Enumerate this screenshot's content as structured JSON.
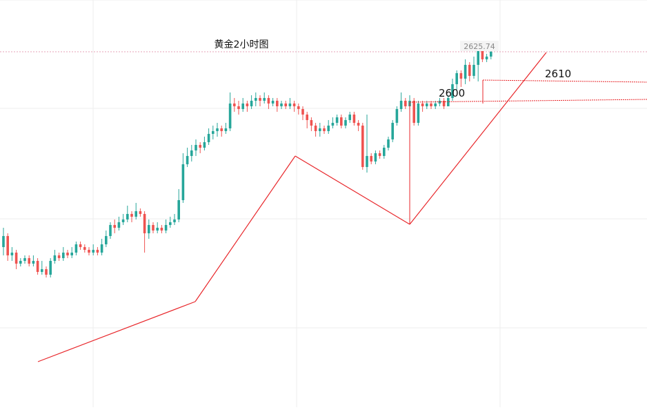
{
  "chart_data": {
    "type": "candlestick",
    "title": "黄金2小时图",
    "current_price_label": "2625.74",
    "colors": {
      "up": "#26a69a",
      "down": "#ef5350",
      "wick": "#333333",
      "annotation": "#e8262a",
      "grid": "#eeeeee",
      "price_line": "#e6a0b6",
      "price_tag_bg": "#f4f4f4",
      "price_tag_text": "#888888",
      "label_text": "#111111"
    },
    "annotations": {
      "levels": [
        {
          "label": "2600",
          "value": 2600
        },
        {
          "label": "2610",
          "value": 2610
        }
      ],
      "trend_lines": 4
    },
    "candles": [
      [
        2555.0,
        2559.0,
        2562.0,
        2552.0
      ],
      [
        2559.0,
        2552.0,
        2560.0,
        2550.0
      ],
      [
        2552.0,
        2553.0,
        2555.0,
        2550.0
      ],
      [
        2553.0,
        2549.0,
        2554.0,
        2547.0
      ],
      [
        2549.0,
        2550.0,
        2551.0,
        2548.0
      ],
      [
        2550.0,
        2551.0,
        2552.0,
        2549.0
      ],
      [
        2551.0,
        2549.0,
        2552.0,
        2548.0
      ],
      [
        2549.0,
        2550.0,
        2552.0,
        2548.0
      ],
      [
        2550.0,
        2546.0,
        2551.0,
        2545.0
      ],
      [
        2546.0,
        2547.0,
        2550.0,
        2545.0
      ],
      [
        2547.0,
        2545.0,
        2548.0,
        2544.0
      ],
      [
        2545.0,
        2550.0,
        2551.0,
        2544.0
      ],
      [
        2550.0,
        2552.0,
        2554.0,
        2549.0
      ],
      [
        2552.0,
        2551.0,
        2553.0,
        2550.0
      ],
      [
        2551.0,
        2553.0,
        2555.0,
        2550.0
      ],
      [
        2553.0,
        2552.0,
        2554.0,
        2551.0
      ],
      [
        2552.0,
        2553.0,
        2555.0,
        2551.0
      ],
      [
        2553.0,
        2556.0,
        2557.0,
        2552.0
      ],
      [
        2556.0,
        2555.0,
        2557.0,
        2554.0
      ],
      [
        2555.0,
        2554.0,
        2556.0,
        2553.0
      ],
      [
        2554.0,
        2553.0,
        2555.0,
        2552.0
      ],
      [
        2553.0,
        2554.0,
        2556.0,
        2552.0
      ],
      [
        2554.0,
        2553.0,
        2555.0,
        2552.0
      ],
      [
        2553.0,
        2556.0,
        2558.0,
        2552.0
      ],
      [
        2556.0,
        2559.0,
        2561.0,
        2555.0
      ],
      [
        2559.0,
        2563.0,
        2564.0,
        2558.0
      ],
      [
        2563.0,
        2562.0,
        2565.0,
        2560.0
      ],
      [
        2562.0,
        2564.0,
        2566.0,
        2561.0
      ],
      [
        2564.0,
        2565.0,
        2567.0,
        2563.0
      ],
      [
        2565.0,
        2567.0,
        2570.0,
        2564.0
      ],
      [
        2567.0,
        2566.0,
        2568.0,
        2564.0
      ],
      [
        2566.0,
        2568.0,
        2571.0,
        2565.0
      ],
      [
        2568.0,
        2567.0,
        2569.0,
        2566.0
      ],
      [
        2567.0,
        2560.0,
        2568.0,
        2553.0
      ],
      [
        2560.0,
        2563.0,
        2565.0,
        2558.0
      ],
      [
        2563.0,
        2561.0,
        2564.0,
        2560.0
      ],
      [
        2561.0,
        2562.0,
        2564.0,
        2560.0
      ],
      [
        2562.0,
        2561.0,
        2563.0,
        2560.0
      ],
      [
        2561.0,
        2563.0,
        2565.0,
        2560.0
      ],
      [
        2563.0,
        2564.0,
        2566.0,
        2562.0
      ],
      [
        2564.0,
        2565.0,
        2567.0,
        2563.0
      ],
      [
        2565.0,
        2572.0,
        2576.0,
        2564.0
      ],
      [
        2572.0,
        2585.0,
        2589.0,
        2571.0
      ],
      [
        2585.0,
        2588.0,
        2591.0,
        2584.0
      ],
      [
        2588.0,
        2590.0,
        2592.0,
        2586.0
      ],
      [
        2590.0,
        2592.0,
        2594.0,
        2588.0
      ],
      [
        2592.0,
        2591.0,
        2593.0,
        2589.0
      ],
      [
        2591.0,
        2593.0,
        2595.0,
        2590.0
      ],
      [
        2593.0,
        2596.0,
        2598.0,
        2592.0
      ],
      [
        2596.0,
        2597.0,
        2599.0,
        2594.0
      ],
      [
        2597.0,
        2598.0,
        2600.0,
        2595.0
      ],
      [
        2598.0,
        2597.0,
        2599.0,
        2595.0
      ],
      [
        2597.0,
        2598.0,
        2600.0,
        2596.0
      ],
      [
        2598.0,
        2607.0,
        2611.0,
        2597.0
      ],
      [
        2607.0,
        2606.0,
        2609.0,
        2604.0
      ],
      [
        2606.0,
        2605.0,
        2608.0,
        2603.0
      ],
      [
        2605.0,
        2607.0,
        2609.0,
        2604.0
      ],
      [
        2607.0,
        2606.0,
        2608.0,
        2604.0
      ],
      [
        2606.0,
        2608.0,
        2610.0,
        2605.0
      ],
      [
        2608.0,
        2609.0,
        2611.0,
        2606.0
      ],
      [
        2609.0,
        2608.0,
        2610.0,
        2606.0
      ],
      [
        2608.0,
        2609.0,
        2611.0,
        2607.0
      ],
      [
        2609.0,
        2607.0,
        2610.0,
        2605.0
      ],
      [
        2607.0,
        2608.0,
        2609.0,
        2606.0
      ],
      [
        2608.0,
        2606.0,
        2609.0,
        2604.0
      ],
      [
        2606.0,
        2607.0,
        2608.0,
        2605.0
      ],
      [
        2607.0,
        2606.0,
        2608.0,
        2605.0
      ],
      [
        2606.0,
        2607.0,
        2609.0,
        2605.0
      ],
      [
        2607.0,
        2606.0,
        2608.0,
        2604.0
      ],
      [
        2606.0,
        2605.0,
        2607.0,
        2603.0
      ],
      [
        2605.0,
        2603.0,
        2606.0,
        2601.0
      ],
      [
        2603.0,
        2601.0,
        2604.0,
        2598.0
      ],
      [
        2601.0,
        2599.0,
        2602.0,
        2597.0
      ],
      [
        2599.0,
        2597.0,
        2600.0,
        2595.0
      ],
      [
        2597.0,
        2598.0,
        2600.0,
        2595.0
      ],
      [
        2598.0,
        2597.0,
        2599.0,
        2596.0
      ],
      [
        2597.0,
        2599.0,
        2601.0,
        2596.0
      ],
      [
        2599.0,
        2600.0,
        2602.0,
        2598.0
      ],
      [
        2600.0,
        2602.0,
        2603.0,
        2599.0
      ],
      [
        2602.0,
        2599.0,
        2603.0,
        2598.0
      ],
      [
        2599.0,
        2601.0,
        2602.0,
        2598.0
      ],
      [
        2601.0,
        2603.0,
        2604.0,
        2600.0
      ],
      [
        2603.0,
        2600.0,
        2604.0,
        2599.0
      ],
      [
        2600.0,
        2599.0,
        2601.0,
        2597.0
      ],
      [
        2599.0,
        2584.0,
        2600.0,
        2583.0
      ],
      [
        2584.0,
        2588.0,
        2603.0,
        2582.0
      ],
      [
        2588.0,
        2586.0,
        2589.0,
        2585.0
      ],
      [
        2586.0,
        2589.0,
        2590.0,
        2585.0
      ],
      [
        2589.0,
        2588.0,
        2590.0,
        2587.0
      ],
      [
        2588.0,
        2591.0,
        2592.0,
        2587.0
      ],
      [
        2591.0,
        2594.0,
        2595.0,
        2590.0
      ],
      [
        2594.0,
        2600.0,
        2601.0,
        2593.0
      ],
      [
        2600.0,
        2605.0,
        2606.0,
        2599.0
      ],
      [
        2605.0,
        2608.0,
        2611.0,
        2604.0
      ],
      [
        2608.0,
        2606.0,
        2609.0,
        2605.0
      ],
      [
        2606.0,
        2608.0,
        2610.0,
        2605.0
      ],
      [
        2608.0,
        2600.0,
        2609.0,
        2599.0
      ],
      [
        2600.0,
        2607.0,
        2608.0,
        2599.0
      ],
      [
        2607.0,
        2606.0,
        2608.0,
        2604.0
      ],
      [
        2606.0,
        2607.0,
        2608.0,
        2605.0
      ],
      [
        2607.0,
        2606.0,
        2608.0,
        2605.0
      ],
      [
        2606.0,
        2607.0,
        2608.0,
        2605.0
      ],
      [
        2607.0,
        2608.0,
        2609.0,
        2606.0
      ],
      [
        2608.0,
        2606.0,
        2609.0,
        2605.0
      ],
      [
        2606.0,
        2609.0,
        2610.0,
        2606.0
      ],
      [
        2609.0,
        2614.0,
        2616.0,
        2608.0
      ],
      [
        2614.0,
        2618.0,
        2619.0,
        2612.0
      ],
      [
        2618.0,
        2616.0,
        2619.0,
        2613.0
      ],
      [
        2616.0,
        2621.0,
        2623.0,
        2614.0
      ],
      [
        2621.0,
        2617.0,
        2622.0,
        2615.0
      ],
      [
        2617.0,
        2621.0,
        2624.0,
        2616.0
      ],
      [
        2621.0,
        2626.0,
        2627.0,
        2615.0
      ],
      [
        2626.0,
        2623.0,
        2627.0,
        2622.0
      ],
      [
        2623.0,
        2624.0,
        2625.0,
        2622.0
      ],
      [
        2624.0,
        2625.74,
        2626.0,
        2623.0
      ]
    ]
  }
}
